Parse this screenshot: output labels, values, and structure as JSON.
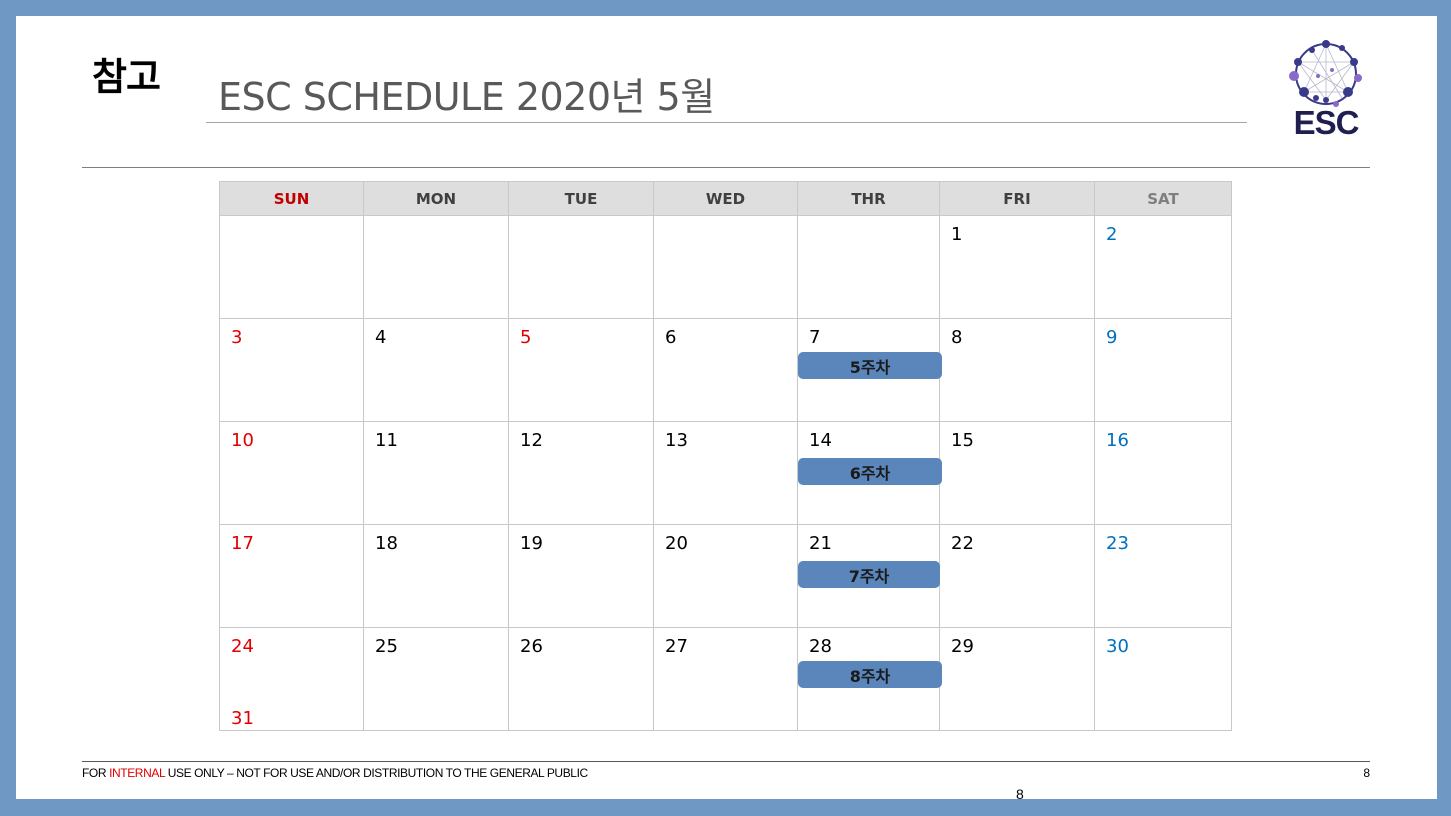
{
  "slide": {
    "tag": "참고",
    "title": "ESC SCHEDULE 2020년 5월",
    "logo_text": "ESC"
  },
  "calendar": {
    "headers": [
      "SUN",
      "MON",
      "TUE",
      "WED",
      "THR",
      "FRI",
      "SAT"
    ],
    "weeks": [
      [
        "",
        "",
        "",
        "",
        "",
        "1",
        "2"
      ],
      [
        "3",
        "4",
        "5",
        "6",
        "7",
        "8",
        "9"
      ],
      [
        "10",
        "11",
        "12",
        "13",
        "14",
        "15",
        "16"
      ],
      [
        "17",
        "18",
        "19",
        "20",
        "21",
        "22",
        "23"
      ],
      [
        "24",
        "25",
        "26",
        "27",
        "28",
        "29",
        "30"
      ]
    ],
    "extra_day": "31",
    "events": [
      "5주차",
      "6주차",
      "7주차",
      "8주차"
    ]
  },
  "footer": {
    "prefix": "FOR ",
    "highlight": "INTERNAL",
    "suffix": " USE ONLY – NOT FOR USE AND/OR DISTRIBUTION TO THE GENERAL PUBLIC",
    "page_right": "8",
    "page_center": "8"
  },
  "colors": {
    "frame": "#7098c4",
    "sunday": "#e00000",
    "saturday": "#0070c0",
    "event_bar": "#5b86bc",
    "header_bg": "#dedede"
  }
}
